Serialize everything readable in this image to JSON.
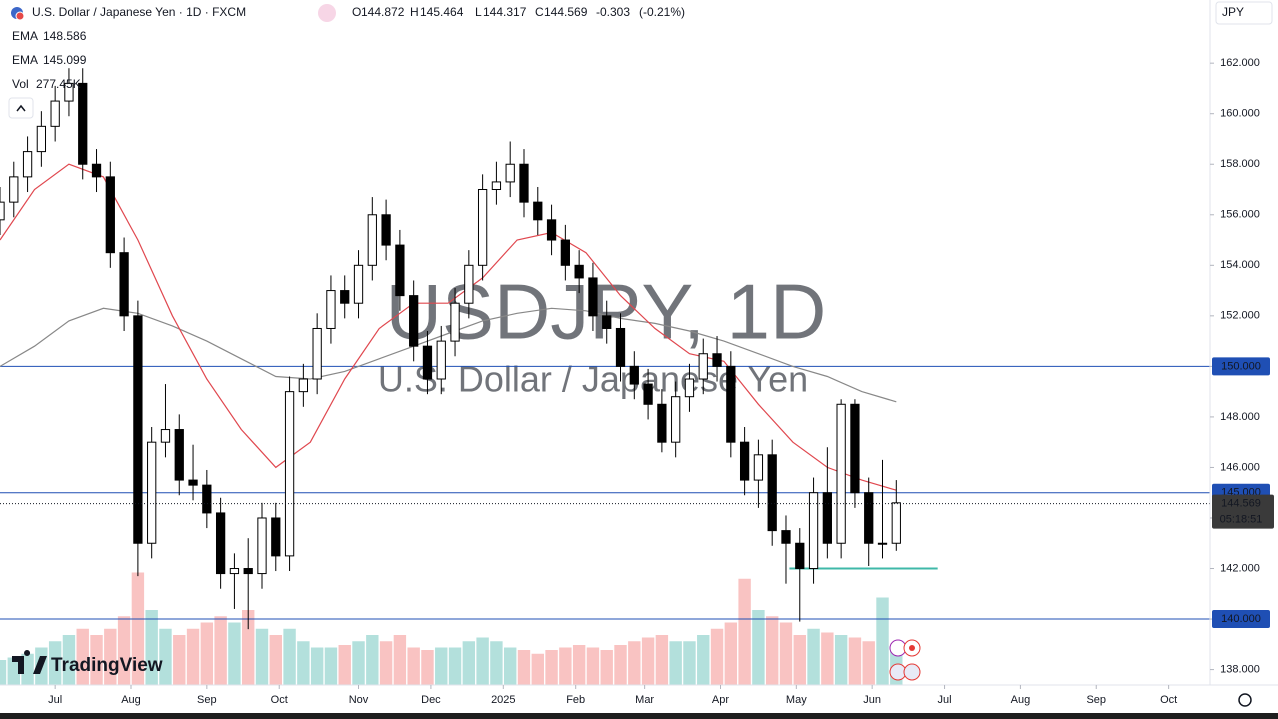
{
  "chart_data": {
    "type": "candlestick",
    "title": "U.S. Dollar / Japanese Yen · 1D · FXCM",
    "legend": {
      "open_key": "O",
      "open": 144.872,
      "high_key": "H",
      "high": 145.464,
      "low_key": "L",
      "low": 144.317,
      "close_key": "C",
      "close": 144.569,
      "change": -0.303,
      "change_pct": {
        "value": -0.21,
        "label": "(-0.21%)"
      }
    },
    "watermark": "USDJPY, 1D",
    "watermark_subtitle": "U.S. Dollar / Japanese Yen",
    "currency": "JPY",
    "brand": "TradingView",
    "countdown": "05:18:51",
    "up_color": "#ffffff",
    "down_color": "#000000",
    "wick_color": "#000000",
    "x": [
      0,
      4,
      8,
      12,
      16,
      20,
      24,
      28,
      32,
      36,
      40,
      44,
      48,
      52,
      56,
      60,
      64,
      68,
      72,
      76,
      80,
      84,
      88,
      92,
      96,
      100,
      104,
      108,
      112,
      116,
      120,
      124,
      128,
      132,
      136,
      140,
      144,
      148,
      152,
      156,
      160,
      164,
      168,
      172,
      176,
      180,
      184,
      188,
      192,
      196,
      200,
      204,
      208,
      212,
      216,
      220,
      224,
      228,
      232,
      236,
      240,
      244,
      248,
      252,
      256,
      260
    ],
    "open": [
      155.8,
      156.5,
      157.5,
      158.5,
      159.5,
      160.5,
      161.2,
      158,
      157.5,
      154.5,
      152,
      143,
      147,
      147.5,
      145.5,
      145.3,
      144.2,
      141.8,
      142,
      141.8,
      144,
      142.5,
      149,
      149.5,
      151.5,
      153,
      152.5,
      154,
      156,
      154.8,
      152.8,
      150.8,
      149.5,
      151,
      152.5,
      154,
      157,
      157.3,
      158,
      156.5,
      155.8,
      155,
      154,
      153.5,
      152,
      151.5,
      150,
      149.3,
      148.5,
      147,
      148.8,
      149.5,
      150.5,
      150,
      147,
      145.5,
      146.5,
      143.5,
      143,
      142,
      145,
      143,
      148.5,
      145,
      143,
      143
    ],
    "high": [
      157.1,
      158.1,
      159.1,
      160.1,
      161.1,
      161.8,
      161.8,
      158.6,
      158.1,
      155.1,
      152.6,
      147.6,
      149.3,
      148.1,
      146.9,
      145.9,
      144.8,
      142.6,
      143.2,
      144.6,
      144.6,
      149.6,
      150.1,
      152.1,
      153.6,
      153.6,
      154.6,
      156.7,
      156.6,
      155.4,
      153.4,
      151.4,
      151.6,
      153.1,
      154.6,
      157.6,
      158.1,
      158.9,
      158.6,
      157.1,
      156.4,
      155.6,
      154.6,
      154.1,
      152.6,
      152.1,
      150.6,
      149.9,
      149.1,
      149.4,
      150.1,
      151.1,
      151.2,
      150.6,
      147.6,
      147.1,
      147.1,
      144.1,
      143.6,
      145.6,
      146.8,
      148.7,
      148.7,
      145.6,
      146.3,
      145.5
    ],
    "low": [
      155.2,
      155.9,
      156.9,
      157.9,
      158.9,
      159.9,
      157.4,
      156.9,
      153.9,
      151.4,
      141.7,
      142.4,
      146.4,
      144.9,
      144.7,
      143.6,
      141.2,
      140.4,
      139.6,
      141.2,
      141.9,
      141.9,
      148.4,
      148.9,
      150.9,
      151.9,
      151.9,
      153.4,
      154.2,
      152.2,
      150.2,
      148.9,
      148.9,
      150.4,
      151.9,
      153.4,
      156.4,
      156.7,
      155.9,
      155.2,
      154.4,
      153.4,
      152.9,
      151.4,
      150.9,
      149.4,
      148.7,
      147.9,
      146.6,
      146.4,
      148.2,
      148.9,
      149.4,
      146.4,
      144.9,
      144.4,
      142.9,
      141.4,
      139.9,
      141.4,
      142.4,
      142.4,
      144.4,
      142.1,
      142.4,
      142.7
    ],
    "close": [
      156.5,
      157.5,
      158.5,
      159.5,
      160.5,
      161.2,
      158,
      157.5,
      154.5,
      152,
      143,
      147,
      147.5,
      145.5,
      145.3,
      144.2,
      141.8,
      142,
      141.8,
      144,
      142.5,
      149,
      149.5,
      151.5,
      153,
      152.5,
      154,
      156,
      154.8,
      152.8,
      150.8,
      149.5,
      151,
      152.5,
      154,
      157,
      157.3,
      158,
      156.5,
      155.8,
      155,
      154,
      153.5,
      152,
      151.5,
      150,
      149.3,
      148.5,
      147,
      148.8,
      149.5,
      150.5,
      150,
      147,
      145.5,
      146.5,
      143.5,
      143,
      142,
      145,
      143,
      148.5,
      145,
      143,
      143,
      144.6
    ],
    "indicators": [
      {
        "name": "EMA",
        "value": 148.586,
        "color": "#888888",
        "x": [
          0,
          10,
          20,
          30,
          40,
          50,
          60,
          70,
          80,
          90,
          100,
          110,
          120,
          130,
          140,
          150,
          160,
          170,
          180,
          190,
          200,
          210,
          220,
          230,
          240,
          250,
          260
        ],
        "values": [
          150,
          150.8,
          151.8,
          152.3,
          152.1,
          151.6,
          151,
          150.3,
          149.6,
          149.5,
          149.8,
          150.3,
          150.8,
          151.3,
          151.8,
          152.1,
          152.3,
          152.2,
          151.9,
          151.7,
          151.4,
          151,
          150.5,
          150,
          149.6,
          149,
          148.6
        ]
      },
      {
        "name": "EMA",
        "value": 145.099,
        "color": "#e0484f",
        "x": [
          0,
          10,
          20,
          30,
          40,
          50,
          60,
          70,
          80,
          90,
          100,
          110,
          120,
          130,
          140,
          150,
          160,
          170,
          180,
          190,
          200,
          210,
          220,
          230,
          240,
          250,
          260
        ],
        "values": [
          155,
          157,
          158,
          157.5,
          155,
          152,
          149.5,
          147.5,
          146,
          147,
          149.5,
          151.5,
          152.5,
          152.5,
          153.5,
          155,
          155.3,
          154.5,
          152.8,
          151.5,
          150.5,
          150.2,
          148.5,
          147,
          146,
          145.5,
          145.1
        ]
      }
    ],
    "volume": {
      "name": "Vol",
      "value": {
        "value": 277450,
        "label": "277.45K"
      },
      "up_color": "#26a69a",
      "down_color": "#ef5350",
      "vlim": [
        0,
        100
      ],
      "values": [
        20,
        22,
        25,
        30,
        35,
        40,
        45,
        40,
        45,
        55,
        90,
        60,
        45,
        40,
        45,
        50,
        55,
        50,
        60,
        45,
        40,
        45,
        35,
        30,
        30,
        32,
        35,
        40,
        35,
        40,
        30,
        28,
        30,
        30,
        35,
        38,
        35,
        30,
        28,
        25,
        28,
        30,
        32,
        30,
        28,
        32,
        35,
        38,
        40,
        35,
        35,
        40,
        45,
        50,
        85,
        60,
        55,
        50,
        40,
        45,
        42,
        40,
        38,
        35,
        70,
        30
      ]
    },
    "last_price": {
      "value": 144.569,
      "label": "144.569"
    },
    "hlines": [
      {
        "value": 150,
        "label": "150.000"
      },
      {
        "value": 145,
        "label": "145.000"
      },
      {
        "value": 140,
        "label": "140.000"
      }
    ],
    "hline_color": "#1f4fb4",
    "support_line": {
      "value": 142,
      "x": [
        229,
        272
      ],
      "color": "#3fb8a8"
    },
    "xlim": [
      0,
      351
    ],
    "ylim": [
      137.39,
      164.5
    ],
    "yticks": [
      {
        "value": 138,
        "label": "138.000"
      },
      {
        "value": 140,
        "label": "140.000"
      },
      {
        "value": 142,
        "label": "142.000"
      },
      {
        "value": 144,
        "label": "144.000"
      },
      {
        "value": 146,
        "label": "146.000"
      },
      {
        "value": 148,
        "label": "148.000"
      },
      {
        "value": 150,
        "label": "150.000"
      },
      {
        "value": 152,
        "label": "152.000"
      },
      {
        "value": 154,
        "label": "154.000"
      },
      {
        "value": 156,
        "label": "156.000"
      },
      {
        "value": 158,
        "label": "158.000"
      },
      {
        "value": 160,
        "label": "160.000"
      },
      {
        "value": 162,
        "label": "162.000"
      }
    ],
    "xticks": [
      {
        "value": 16,
        "label": "Jul"
      },
      {
        "value": 38,
        "label": "Aug"
      },
      {
        "value": 60,
        "label": "Sep"
      },
      {
        "value": 81,
        "label": "Oct"
      },
      {
        "value": 104,
        "label": "Nov"
      },
      {
        "value": 125,
        "label": "Dec"
      },
      {
        "value": 146,
        "label": "2025"
      },
      {
        "value": 167,
        "label": "Feb"
      },
      {
        "value": 187,
        "label": "Mar"
      },
      {
        "value": 209,
        "label": "Apr"
      },
      {
        "value": 231,
        "label": "May"
      },
      {
        "value": 253,
        "label": "Jun"
      },
      {
        "value": 274,
        "label": "Jul"
      },
      {
        "value": 296,
        "label": "Aug"
      },
      {
        "value": 318,
        "label": "Sep"
      },
      {
        "value": 339,
        "label": "Oct"
      }
    ]
  }
}
